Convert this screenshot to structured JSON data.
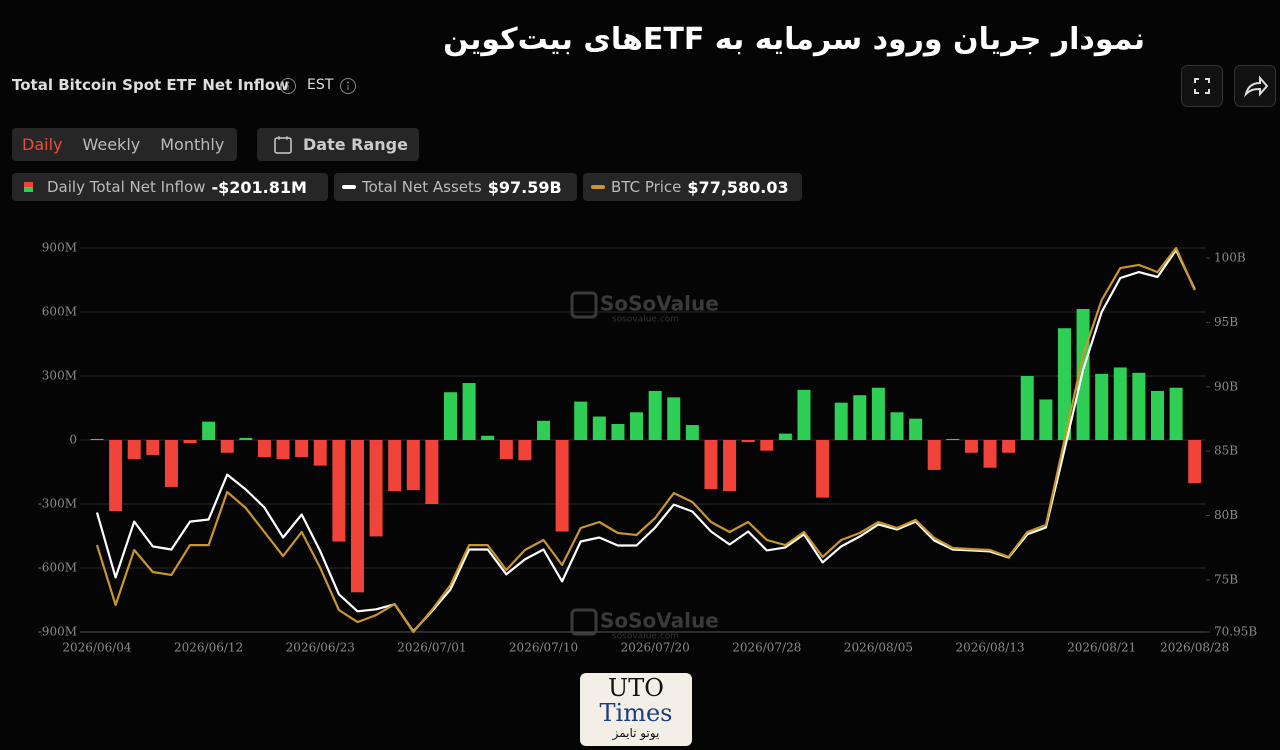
{
  "title": "نمودار جریان ورود سرمایه به ETFهای بیت‌کوین",
  "header": {
    "title": "Total Bitcoin Spot ETF Net Inflow",
    "timezone": "EST"
  },
  "tabs": [
    "Daily",
    "Weekly",
    "Monthly"
  ],
  "active_tab": 0,
  "date_range": "Date Range",
  "logo": {
    "line1": "UTO",
    "line2": "Times",
    "line3": "یوتو تایمز"
  },
  "chart_data": {
    "type": "bar",
    "watermark": {
      "brand": "SoSoValue",
      "site": "sosovalue.com"
    },
    "categories": [
      "2026/06/04",
      null,
      null,
      null,
      null,
      null,
      "2026/06/12",
      null,
      null,
      null,
      null,
      null,
      "2026/06/23",
      null,
      null,
      null,
      null,
      null,
      "2026/07/01",
      null,
      null,
      null,
      null,
      null,
      "2026/07/10",
      null,
      null,
      null,
      null,
      null,
      "2026/07/20",
      null,
      null,
      null,
      null,
      null,
      "2026/07/28",
      null,
      null,
      null,
      null,
      null,
      "2026/08/05",
      null,
      null,
      null,
      null,
      null,
      "2026/08/13",
      null,
      null,
      null,
      null,
      null,
      "2026/08/21",
      null,
      null,
      null,
      null,
      "2026/08/28"
    ],
    "series": [
      {
        "name": "Daily Total Net Inflow",
        "latest": "-$201.81M",
        "color": "#2fcf55",
        "negative_color": "#f0443a",
        "values": [
          5,
          -333,
          -90,
          -70,
          -220,
          -15,
          86,
          -60,
          10,
          -80,
          -90,
          -80,
          -120,
          -476,
          -714,
          -452,
          -240,
          -235,
          -300,
          224,
          267,
          20,
          -90,
          -95,
          90,
          -429,
          180,
          110,
          75,
          130,
          230,
          200,
          70,
          -230,
          -240,
          -10,
          -50,
          30,
          235,
          -270,
          175,
          210,
          245,
          130,
          100,
          -140,
          5,
          -60,
          -130,
          -60,
          300,
          190,
          524,
          614,
          310,
          340,
          315,
          230,
          245,
          -201.81
        ]
      },
      {
        "name": "Total Net Assets",
        "latest": "$97.59B",
        "color": "#ffffff",
        "axis": "y2",
        "values": [
          80.23,
          75.19,
          79.53,
          77.6,
          77.36,
          79.53,
          79.69,
          83.18,
          82.02,
          80.62,
          78.29,
          80.08,
          77.21,
          73.88,
          72.56,
          72.71,
          73.1,
          71.0,
          72.56,
          74.26,
          77.36,
          77.36,
          75.43,
          76.59,
          77.36,
          74.88,
          77.98,
          78.29,
          77.67,
          77.67,
          79.07,
          80.85,
          80.31,
          78.76,
          77.75,
          78.76,
          77.29,
          77.52,
          78.53,
          76.36,
          77.6,
          78.37,
          79.3,
          78.91,
          79.53,
          78.06,
          77.36,
          77.29,
          77.21,
          76.74,
          78.53,
          79.07,
          85.12,
          91.32,
          95.81,
          98.45,
          98.91,
          98.53,
          100.62,
          97.59
        ]
      },
      {
        "name": "BTC Price",
        "latest": "$77,580.03",
        "color": "#c9952f",
        "axis": "y3",
        "values": [
          62980,
          59550,
          62700,
          61440,
          61270,
          62980,
          62980,
          66020,
          65100,
          63730,
          62350,
          63730,
          61670,
          59260,
          58570,
          58970,
          59600,
          58000,
          59260,
          60690,
          62980,
          62980,
          61550,
          62700,
          63270,
          61840,
          63960,
          64300,
          63670,
          63560,
          64530,
          65960,
          65450,
          64300,
          63730,
          64300,
          63270,
          62980,
          63730,
          62300,
          63270,
          63670,
          64300,
          63960,
          64420,
          63390,
          62810,
          62750,
          62700,
          62300,
          63730,
          64130,
          69000,
          73870,
          77020,
          78850,
          79030,
          78620,
          80000,
          77580.03
        ]
      }
    ],
    "ylim": [
      -900,
      900
    ],
    "yticks": [
      {
        "value": 900,
        "label": "900M"
      },
      {
        "value": 600,
        "label": "600M"
      },
      {
        "value": 300,
        "label": "300M"
      },
      0,
      {
        "value": -300,
        "label": "-300M"
      },
      {
        "value": -600,
        "label": "-600M"
      },
      {
        "value": -900,
        "label": "-900M"
      }
    ],
    "y2lim": [
      70.95,
      100.78
    ],
    "y2ticks": [
      {
        "value": 100,
        "label": "100B"
      },
      {
        "value": 95,
        "label": "95B"
      },
      {
        "value": 90,
        "label": "90B"
      },
      {
        "value": 85,
        "label": "85B"
      },
      {
        "value": 80,
        "label": "80B"
      },
      {
        "value": 75,
        "label": "75B"
      },
      {
        "value": 70.95,
        "label": "70.95B"
      }
    ],
    "y3lim": [
      58000,
      80000
    ],
    "grid": true
  }
}
